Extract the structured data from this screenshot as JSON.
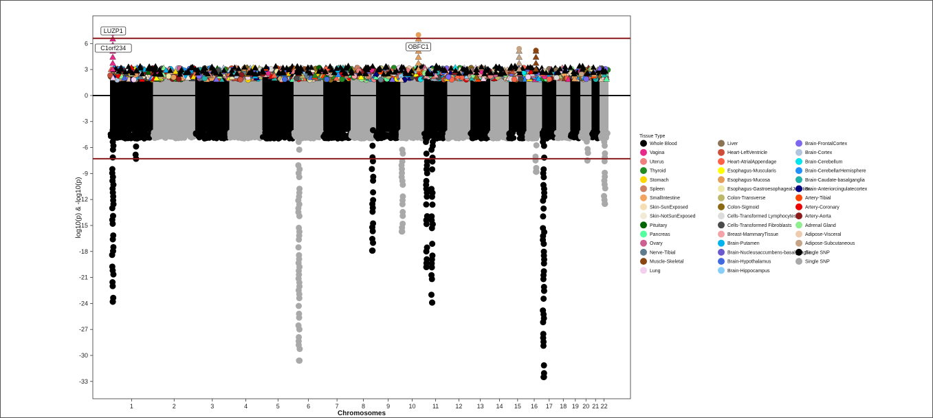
{
  "chart_data": {
    "type": "scatter",
    "subtype": "miami-manhattan",
    "xlabel": "Chromosomes",
    "ylabel": "log10(p) & -log10(p)",
    "ylim": [
      -35,
      9.2
    ],
    "yticks": [
      6,
      3,
      0,
      -3,
      -6,
      -9,
      -12,
      -15,
      -18,
      -21,
      -24,
      -27,
      -30,
      -33
    ],
    "chromosomes": [
      {
        "name": "1",
        "start": 0,
        "end": 249
      },
      {
        "name": "2",
        "start": 249,
        "end": 492
      },
      {
        "name": "3",
        "start": 492,
        "end": 690
      },
      {
        "name": "4",
        "start": 690,
        "end": 880
      },
      {
        "name": "5",
        "start": 880,
        "end": 1061
      },
      {
        "name": "6",
        "start": 1061,
        "end": 1232
      },
      {
        "name": "7",
        "start": 1232,
        "end": 1391
      },
      {
        "name": "8",
        "start": 1391,
        "end": 1537
      },
      {
        "name": "9",
        "start": 1537,
        "end": 1678
      },
      {
        "name": "10",
        "start": 1678,
        "end": 1814
      },
      {
        "name": "11",
        "start": 1814,
        "end": 1949
      },
      {
        "name": "12",
        "start": 1949,
        "end": 2082
      },
      {
        "name": "13",
        "start": 2082,
        "end": 2197
      },
      {
        "name": "14",
        "start": 2197,
        "end": 2304
      },
      {
        "name": "15",
        "start": 2304,
        "end": 2406
      },
      {
        "name": "16",
        "start": 2406,
        "end": 2496
      },
      {
        "name": "17",
        "start": 2496,
        "end": 2579
      },
      {
        "name": "18",
        "start": 2579,
        "end": 2659
      },
      {
        "name": "19",
        "start": 2659,
        "end": 2718
      },
      {
        "name": "20",
        "start": 2718,
        "end": 2782
      },
      {
        "name": "21",
        "start": 2782,
        "end": 2829
      },
      {
        "name": "22",
        "start": 2829,
        "end": 2880
      }
    ],
    "thresholds": [
      {
        "y": 6.6,
        "color": "#8b1a1a"
      },
      {
        "y": -7.3,
        "color": "#8b1a1a"
      },
      {
        "y": 0,
        "color": "#000000"
      }
    ],
    "annotations": [
      {
        "label": "LUZP1",
        "x": 19,
        "y": 7.2
      },
      {
        "label": "C1orf234",
        "x": 19,
        "y": 6.8
      },
      {
        "label": "OBFC1",
        "x": 1782,
        "y": 6.9
      }
    ],
    "lower_extremes": [
      {
        "chr": "1",
        "pos": 16,
        "min": -23.8,
        "color": "#000000"
      },
      {
        "chr": "1",
        "pos": 150,
        "min": -7.3,
        "color": "#000000"
      },
      {
        "chr": "6",
        "pos": 31,
        "min": -30.6,
        "color": "#a9a9a9"
      },
      {
        "chr": "8",
        "pos": 126,
        "min": -17.9,
        "color": "#000000"
      },
      {
        "chr": "10",
        "pos": 10,
        "min": -15.7,
        "color": "#a9a9a9"
      },
      {
        "chr": "11",
        "pos": 15,
        "min": -19.8,
        "color": "#000000"
      },
      {
        "chr": "11",
        "pos": 47,
        "min": -23.9,
        "color": "#000000"
      },
      {
        "chr": "16",
        "pos": 55,
        "min": -8.8,
        "color": "#a9a9a9"
      },
      {
        "chr": "17",
        "pos": 9,
        "min": -32.5,
        "color": "#000000"
      },
      {
        "chr": "20",
        "pos": 40,
        "min": -7.5,
        "color": "#a9a9a9"
      },
      {
        "chr": "22",
        "pos": 29,
        "min": -12.5,
        "color": "#a9a9a9"
      }
    ],
    "upper_extremes": [
      {
        "chr": "1",
        "pos": 16,
        "max": 7.2,
        "tissue": "Vagina"
      },
      {
        "chr": "10",
        "pos": 104,
        "max": 7.0,
        "tissue": "Esophagus-Mucosa"
      },
      {
        "chr": "15",
        "pos": 60,
        "max": 5.4,
        "tissue": "Adipose-Subcutaneous"
      },
      {
        "chr": "16",
        "pos": 55,
        "max": 5.2,
        "tissue": "Muscle-Skeletal"
      }
    ]
  },
  "legend": {
    "title": "Tissue Type",
    "items": [
      {
        "label": "Whole Blood",
        "color": "#000000"
      },
      {
        "label": "Vagina",
        "color": "#e7298a"
      },
      {
        "label": "Uterus",
        "color": "#f08080"
      },
      {
        "label": "Thyroid",
        "color": "#228b22"
      },
      {
        "label": "Stomach",
        "color": "#ffd700"
      },
      {
        "label": "Spleen",
        "color": "#cd8162"
      },
      {
        "label": "SmallIntestine",
        "color": "#f4a460"
      },
      {
        "label": "Skin-SunExposed",
        "color": "#f5deb3"
      },
      {
        "label": "Skin-NotSunExposed",
        "color": "#f0ead6"
      },
      {
        "label": "Pituitary",
        "color": "#006400"
      },
      {
        "label": "Pancreas",
        "color": "#54ff9f"
      },
      {
        "label": "Ovary",
        "color": "#cd6090"
      },
      {
        "label": "Nerve-Tibial",
        "color": "#607b8b"
      },
      {
        "label": "Muscle-Skeletal",
        "color": "#8b4513"
      },
      {
        "label": "Lung",
        "color": "#f3d1ee"
      },
      {
        "label": "Liver",
        "color": "#8b7355"
      },
      {
        "label": "Heart-LeftVentricle",
        "color": "#cd4f39"
      },
      {
        "label": "Heart-AtrialAppendage",
        "color": "#ff6347"
      },
      {
        "label": "Esophagus-Muscularis",
        "color": "#ffff00"
      },
      {
        "label": "Esophagus-Mucosa",
        "color": "#e59d5a"
      },
      {
        "label": "Esophagus-GastroesophagealJunction",
        "color": "#eee8aa"
      },
      {
        "label": "Colon-Transverse",
        "color": "#bdb76b"
      },
      {
        "label": "Colon-Sigmoid",
        "color": "#8b6914"
      },
      {
        "label": "Cells-Transformed Lymphocytes",
        "color": "#dcdcdc"
      },
      {
        "label": "Cells-Transformed Fibroblasts",
        "color": "#4a4a4a"
      },
      {
        "label": "Breast-MammaryTissue",
        "color": "#f4a3a8"
      },
      {
        "label": "Brain-Putamen",
        "color": "#00b2ee"
      },
      {
        "label": "Brain-Nucleusaccumbens-basalganglia",
        "color": "#6a5acd"
      },
      {
        "label": "Brain-Hypothalamus",
        "color": "#4169e1"
      },
      {
        "label": "Brain-Hippocampus",
        "color": "#87cefa"
      },
      {
        "label": "Brain-FrontalCortex",
        "color": "#7b68ee"
      },
      {
        "label": "Brain-Cortex",
        "color": "#b0c4de"
      },
      {
        "label": "Brain-Cerebellum",
        "color": "#00e5ee"
      },
      {
        "label": "Brain-CerebellarHemisphere",
        "color": "#1e90ff"
      },
      {
        "label": "Brain-Caudate-basalganglia",
        "color": "#20b2aa"
      },
      {
        "label": "Brain-Anteriorcingulatecortex",
        "color": "#000080"
      },
      {
        "label": "Artery-Tibial",
        "color": "#ff4500"
      },
      {
        "label": "Artery-Coronary",
        "color": "#ee0000"
      },
      {
        "label": "Artery-Aorta",
        "color": "#8b1a1a"
      },
      {
        "label": "Adrenal Gland",
        "color": "#90ee90"
      },
      {
        "label": "Adipose-Visceral",
        "color": "#eecbad"
      },
      {
        "label": "Adipose-Subcutaneous",
        "color": "#c4a484"
      },
      {
        "label": "Single SNP",
        "color": "#000000"
      },
      {
        "label": "Single SNP",
        "color": "#a9a9a9"
      }
    ]
  }
}
